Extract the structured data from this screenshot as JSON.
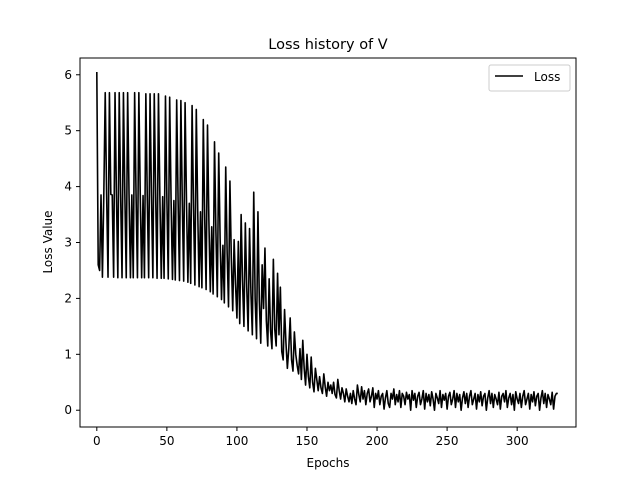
{
  "chart_data": {
    "type": "line",
    "title": "Loss history of V",
    "xlabel": "Epochs",
    "ylabel": "Loss Value",
    "xlim": [
      -12,
      342
    ],
    "ylim": [
      -0.3,
      6.3
    ],
    "x_ticks": [
      0,
      50,
      100,
      150,
      200,
      250,
      300
    ],
    "y_ticks": [
      0,
      1,
      2,
      3,
      4,
      5,
      6
    ],
    "grid": false,
    "legend_position": "top-right",
    "line_color": "#000000",
    "series": [
      {
        "name": "Loss",
        "x": [
          0,
          1,
          2,
          3,
          4,
          5,
          6,
          7,
          8,
          9,
          10,
          11,
          12,
          13,
          14,
          15,
          16,
          17,
          18,
          19,
          20,
          21,
          22,
          23,
          24,
          25,
          26,
          27,
          28,
          29,
          30,
          31,
          32,
          33,
          34,
          35,
          36,
          37,
          38,
          39,
          40,
          41,
          42,
          43,
          44,
          45,
          46,
          47,
          48,
          49,
          50,
          51,
          52,
          53,
          54,
          55,
          56,
          57,
          58,
          59,
          60,
          61,
          62,
          63,
          64,
          65,
          66,
          67,
          68,
          69,
          70,
          71,
          72,
          73,
          74,
          75,
          76,
          77,
          78,
          79,
          80,
          81,
          82,
          83,
          84,
          85,
          86,
          87,
          88,
          89,
          90,
          91,
          92,
          93,
          94,
          95,
          96,
          97,
          98,
          99,
          100,
          101,
          102,
          103,
          104,
          105,
          106,
          107,
          108,
          109,
          110,
          111,
          112,
          113,
          114,
          115,
          116,
          117,
          118,
          119,
          120,
          121,
          122,
          123,
          124,
          125,
          126,
          127,
          128,
          129,
          130,
          131,
          132,
          133,
          134,
          135,
          136,
          137,
          138,
          139,
          140,
          141,
          142,
          143,
          144,
          145,
          146,
          147,
          148,
          149,
          150,
          151,
          152,
          153,
          154,
          155,
          156,
          157,
          158,
          159,
          160,
          161,
          162,
          163,
          164,
          165,
          166,
          167,
          168,
          169,
          170,
          171,
          172,
          173,
          174,
          175,
          176,
          177,
          178,
          179,
          180,
          181,
          182,
          183,
          184,
          185,
          186,
          187,
          188,
          189,
          190,
          191,
          192,
          193,
          194,
          195,
          196,
          197,
          198,
          199,
          200,
          201,
          202,
          203,
          204,
          205,
          206,
          207,
          208,
          209,
          210,
          211,
          212,
          213,
          214,
          215,
          216,
          217,
          218,
          219,
          220,
          221,
          222,
          223,
          224,
          225,
          226,
          227,
          228,
          229,
          230,
          231,
          232,
          233,
          234,
          235,
          236,
          237,
          238,
          239,
          240,
          241,
          242,
          243,
          244,
          245,
          246,
          247,
          248,
          249,
          250,
          251,
          252,
          253,
          254,
          255,
          256,
          257,
          258,
          259,
          260,
          261,
          262,
          263,
          264,
          265,
          266,
          267,
          268,
          269,
          270,
          271,
          272,
          273,
          274,
          275,
          276,
          277,
          278,
          279,
          280,
          281,
          282,
          283,
          284,
          285,
          286,
          287,
          288,
          289,
          290,
          291,
          292,
          293,
          294,
          295,
          296,
          297,
          298,
          299,
          300,
          301,
          302,
          303,
          304,
          305,
          306,
          307,
          308,
          309,
          310,
          311,
          312,
          313,
          314,
          315,
          316,
          317,
          318,
          319,
          320,
          321,
          322,
          323,
          324,
          325,
          326,
          327,
          328,
          329
        ],
        "values": [
          6.05,
          2.6,
          2.5,
          3.85,
          2.38,
          3.87,
          5.68,
          3.86,
          2.38,
          5.68,
          3.86,
          3.85,
          2.38,
          5.68,
          3.86,
          2.37,
          5.68,
          3.86,
          2.37,
          5.68,
          3.86,
          2.37,
          5.68,
          3.86,
          2.37,
          3.85,
          2.37,
          5.68,
          3.86,
          2.37,
          5.68,
          3.86,
          2.37,
          3.84,
          2.37,
          5.66,
          3.84,
          2.37,
          5.66,
          3.84,
          2.37,
          5.66,
          3.83,
          2.36,
          5.66,
          3.83,
          2.36,
          3.82,
          2.36,
          5.62,
          3.8,
          2.35,
          5.6,
          3.78,
          2.34,
          3.75,
          2.33,
          5.55,
          3.77,
          2.32,
          5.54,
          3.75,
          2.31,
          5.5,
          3.73,
          2.29,
          3.7,
          2.27,
          5.45,
          3.65,
          2.24,
          5.38,
          3.6,
          2.21,
          3.55,
          2.19,
          5.2,
          3.45,
          2.16,
          5.1,
          3.38,
          2.12,
          3.28,
          2.08,
          4.8,
          3.2,
          2.03,
          4.6,
          3.08,
          1.98,
          2.95,
          1.92,
          4.35,
          2.84,
          1.85,
          4.1,
          2.72,
          1.78,
          3.05,
          2.25,
          1.65,
          3.02,
          1.55,
          3.5,
          2.3,
          1.5,
          3.35,
          2.2,
          1.42,
          3.25,
          2.1,
          1.35,
          3.9,
          2.0,
          1.28,
          3.55,
          1.95,
          1.2,
          2.6,
          1.82,
          2.9,
          1.6,
          1.15,
          2.35,
          1.42,
          1.1,
          2.7,
          1.45,
          1.15,
          2.45,
          1.35,
          2.2,
          1.05,
          0.9,
          1.8,
          1.2,
          0.75,
          1.1,
          1.65,
          0.9,
          0.7,
          1.4,
          1.0,
          0.8,
          0.65,
          1.1,
          0.55,
          1.25,
          0.75,
          0.45,
          1.0,
          0.6,
          0.4,
          0.95,
          0.5,
          0.33,
          0.75,
          0.55,
          0.35,
          0.6,
          0.4,
          0.3,
          0.65,
          0.42,
          0.25,
          0.5,
          0.35,
          0.45,
          0.3,
          0.5,
          0.28,
          0.22,
          0.55,
          0.35,
          0.2,
          0.4,
          0.3,
          0.15,
          0.38,
          0.25,
          0.15,
          0.3,
          0.12,
          0.35,
          0.2,
          0.1,
          0.45,
          0.28,
          0.15,
          0.42,
          0.2,
          0.35,
          0.1,
          0.3,
          0.38,
          0.15,
          0.25,
          0.4,
          0.05,
          0.3,
          0.2,
          0.35,
          0.1,
          0.25,
          0.3,
          0.02,
          0.22,
          0.35,
          0.12,
          0.05,
          0.3,
          0.2,
          0.38,
          0.1,
          0.28,
          0.15,
          0.35,
          0.05,
          0.3,
          0.25,
          0.1,
          0.32,
          0.2,
          0.28,
          0.0,
          0.35,
          0.18,
          0.3,
          0.05,
          0.25,
          0.32,
          0.1,
          0.2,
          0.35,
          0.02,
          0.3,
          0.15,
          0.28,
          0.08,
          0.33,
          0.2,
          0.0,
          0.3,
          0.22,
          0.12,
          0.35,
          0.05,
          0.28,
          0.18,
          0.3,
          0.02,
          0.25,
          0.32,
          0.1,
          0.2,
          0.35,
          0.05,
          0.3,
          0.15,
          0.28,
          0.0,
          0.22,
          0.33,
          0.12,
          0.3,
          0.05,
          0.25,
          0.35,
          0.1,
          0.2,
          0.3,
          0.02,
          0.28,
          0.15,
          0.33,
          0.08,
          0.25,
          0.3,
          0.0,
          0.22,
          0.35,
          0.12,
          0.3,
          0.05,
          0.28,
          0.2,
          0.1,
          0.32,
          0.02,
          0.25,
          0.3,
          0.15,
          0.35,
          0.05,
          0.22,
          0.3,
          0.1,
          0.28,
          0.0,
          0.33,
          0.2,
          0.12,
          0.3,
          0.05,
          0.25,
          0.35,
          0.1,
          0.2,
          0.3,
          0.02,
          0.28,
          0.15,
          0.33,
          0.08,
          0.25,
          0.3,
          0.0,
          0.22,
          0.35,
          0.12,
          0.3,
          0.05,
          0.28,
          0.2,
          0.1,
          0.32,
          0.02,
          0.25,
          0.3,
          0.3
        ]
      }
    ]
  }
}
